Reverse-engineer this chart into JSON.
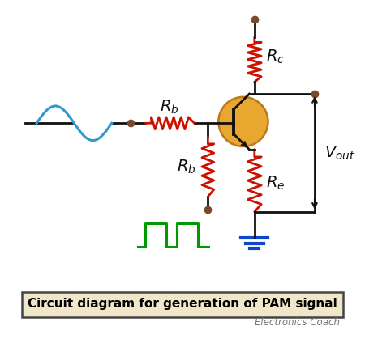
{
  "title": "Circuit diagram for generation of PAM signal",
  "subtitle": "Electronics Coach",
  "title_box_color": "#f0e6c8",
  "title_border_color": "#444444",
  "bg_color": "#ffffff",
  "wire_color": "#111111",
  "resistor_color": "#cc1100",
  "sine_color": "#3399cc",
  "transistor_fill": "#e8a830",
  "transistor_border": "#c07820",
  "ground_color": "#1144cc",
  "junction_color": "#7a4a2a",
  "top_dot_color": "#7a4a2a",
  "pulse_color": "#009900",
  "vout_color": "#111111",
  "label_color": "#111111"
}
